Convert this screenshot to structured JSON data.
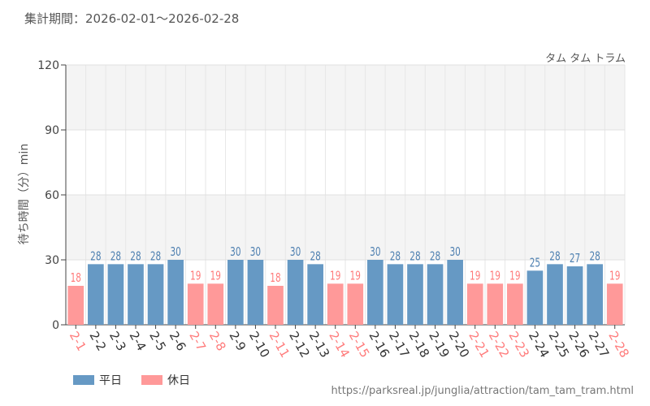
{
  "header": {
    "period_label": "集計期間：2026-02-01～2026-02-28"
  },
  "chart_data": {
    "type": "bar",
    "title": "タム タム トラム",
    "ylabel": "待ち時間（分）min",
    "xlabel": "",
    "ylim": [
      0,
      120
    ],
    "yticks": [
      0,
      30,
      60,
      90,
      120
    ],
    "categories": [
      "2-1",
      "2-2",
      "2-3",
      "2-4",
      "2-5",
      "2-6",
      "2-7",
      "2-8",
      "2-9",
      "2-10",
      "2-11",
      "2-12",
      "2-13",
      "2-14",
      "2-15",
      "2-16",
      "2-17",
      "2-18",
      "2-19",
      "2-20",
      "2-21",
      "2-22",
      "2-23",
      "2-24",
      "2-25",
      "2-26",
      "2-27",
      "2-28"
    ],
    "values": [
      18,
      28,
      28,
      28,
      28,
      30,
      19,
      19,
      30,
      30,
      18,
      30,
      28,
      19,
      19,
      30,
      28,
      28,
      28,
      30,
      19,
      19,
      19,
      25,
      28,
      27,
      28,
      19
    ],
    "day_type": [
      "holiday",
      "weekday",
      "weekday",
      "weekday",
      "weekday",
      "weekday",
      "holiday",
      "holiday",
      "weekday",
      "weekday",
      "holiday",
      "weekday",
      "weekday",
      "holiday",
      "holiday",
      "weekday",
      "weekday",
      "weekday",
      "weekday",
      "weekday",
      "holiday",
      "holiday",
      "holiday",
      "weekday",
      "weekday",
      "weekday",
      "weekday",
      "holiday"
    ],
    "legend": [
      {
        "key": "weekday",
        "label": "平日"
      },
      {
        "key": "holiday",
        "label": "休日"
      }
    ],
    "colors": {
      "weekday": "#6699c4",
      "holiday": "#ff9999",
      "weekday_label": "#4d7fb0",
      "holiday_label": "#ff7b7b"
    }
  },
  "footer": {
    "source_url": "https://parksreal.jp/junglia/attraction/tam_tam_tram.html"
  }
}
